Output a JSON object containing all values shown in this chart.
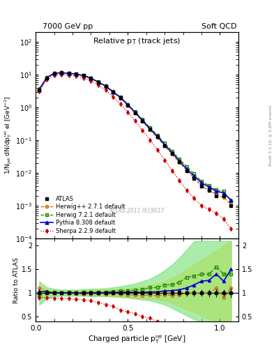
{
  "title_left": "7000 GeV pp",
  "title_right": "Soft QCD",
  "plot_title": "Relative p$_{\\rm T}$ (track jets)",
  "xlabel": "Charged particle p$^{\\rm rel}_{\\rm T}$ [GeV]",
  "ylabel_main": "1/N$_{\\rm jet}$ dN/dp$^{\\rm rel}_{\\rm T}$ el [GeV$^{-1}$]",
  "ylabel_ratio": "Ratio to ATLAS",
  "right_label": "Rivet 3.1.10, ≥ 2.6M events",
  "watermark": "ATLAS 2011 I919017",
  "xlim": [
    0.0,
    1.1
  ],
  "ylim_main": [
    0.0001,
    200
  ],
  "ylim_ratio": [
    0.4,
    2.15
  ],
  "pt_values": [
    0.02,
    0.06,
    0.1,
    0.14,
    0.18,
    0.22,
    0.26,
    0.3,
    0.34,
    0.38,
    0.42,
    0.46,
    0.5,
    0.54,
    0.58,
    0.62,
    0.66,
    0.7,
    0.74,
    0.78,
    0.82,
    0.86,
    0.9,
    0.94,
    0.98,
    1.02,
    1.06
  ],
  "atlas_y": [
    3.5,
    8.0,
    11.0,
    11.5,
    11.0,
    10.5,
    9.5,
    7.8,
    6.0,
    4.5,
    3.0,
    2.0,
    1.2,
    0.7,
    0.4,
    0.22,
    0.13,
    0.07,
    0.04,
    0.022,
    0.012,
    0.007,
    0.004,
    0.003,
    0.002,
    0.002,
    0.001
  ],
  "atlas_yerr": [
    0.3,
    0.3,
    0.3,
    0.3,
    0.25,
    0.25,
    0.2,
    0.2,
    0.15,
    0.12,
    0.08,
    0.06,
    0.04,
    0.025,
    0.015,
    0.009,
    0.006,
    0.003,
    0.002,
    0.0012,
    0.0008,
    0.0005,
    0.0003,
    0.00025,
    0.00018,
    0.00015,
    0.0001
  ],
  "herwigpp_y": [
    3.85,
    8.2,
    11.1,
    11.5,
    11.0,
    10.3,
    9.3,
    7.6,
    5.9,
    4.4,
    2.95,
    1.95,
    1.15,
    0.67,
    0.38,
    0.21,
    0.123,
    0.067,
    0.038,
    0.021,
    0.012,
    0.007,
    0.004,
    0.003,
    0.0022,
    0.0018,
    0.0011
  ],
  "herwig721_y": [
    3.3,
    8.1,
    11.2,
    11.6,
    11.15,
    10.6,
    9.6,
    7.9,
    6.1,
    4.6,
    3.1,
    2.1,
    1.26,
    0.74,
    0.43,
    0.245,
    0.145,
    0.082,
    0.047,
    0.027,
    0.016,
    0.0095,
    0.0056,
    0.0042,
    0.0031,
    0.0028,
    0.0014
  ],
  "pythia_y": [
    3.6,
    8.2,
    11.0,
    11.55,
    11.05,
    10.5,
    9.5,
    7.82,
    6.02,
    4.52,
    3.03,
    2.02,
    1.22,
    0.71,
    0.405,
    0.225,
    0.133,
    0.073,
    0.042,
    0.0235,
    0.0133,
    0.0082,
    0.005,
    0.0038,
    0.0028,
    0.0025,
    0.0015
  ],
  "sherpa_y": [
    3.15,
    7.2,
    9.8,
    10.2,
    9.7,
    9.1,
    8.1,
    6.5,
    4.8,
    3.4,
    2.15,
    1.28,
    0.72,
    0.39,
    0.2,
    0.103,
    0.052,
    0.025,
    0.012,
    0.006,
    0.003,
    0.0017,
    0.001,
    0.0008,
    0.0006,
    0.0004,
    0.0002
  ],
  "herwigpp_band_lo": [
    0.88,
    0.93,
    0.95,
    0.96,
    0.96,
    0.96,
    0.95,
    0.95,
    0.95,
    0.94,
    0.93,
    0.92,
    0.91,
    0.9,
    0.89,
    0.88,
    0.86,
    0.83,
    0.78,
    0.73,
    0.65,
    0.6,
    0.52,
    0.45,
    0.4,
    0.35,
    0.3
  ],
  "herwigpp_band_hi": [
    1.15,
    1.08,
    1.06,
    1.05,
    1.05,
    1.05,
    1.06,
    1.06,
    1.06,
    1.07,
    1.08,
    1.09,
    1.1,
    1.12,
    1.14,
    1.16,
    1.2,
    1.25,
    1.32,
    1.4,
    1.5,
    1.6,
    1.7,
    1.8,
    1.9,
    2.0,
    2.1
  ],
  "herwig721_band_lo": [
    0.75,
    0.88,
    0.92,
    0.94,
    0.94,
    0.94,
    0.94,
    0.93,
    0.93,
    0.93,
    0.92,
    0.91,
    0.9,
    0.88,
    0.86,
    0.84,
    0.8,
    0.75,
    0.68,
    0.6,
    0.52,
    0.44,
    0.38,
    0.32,
    0.28,
    0.24,
    0.2
  ],
  "herwig721_band_hi": [
    1.25,
    1.12,
    1.09,
    1.07,
    1.07,
    1.07,
    1.08,
    1.09,
    1.09,
    1.1,
    1.12,
    1.14,
    1.17,
    1.2,
    1.25,
    1.3,
    1.38,
    1.48,
    1.6,
    1.75,
    1.92,
    2.1,
    2.1,
    2.1,
    2.1,
    2.1,
    2.1
  ],
  "color_atlas": "#000000",
  "color_herwigpp": "#cc6600",
  "color_herwig721": "#228800",
  "color_pythia": "#0000cc",
  "color_sherpa": "#cc0000",
  "color_herwigpp_band": "#ffdd44",
  "color_herwig721_band": "#66dd66",
  "background_color": "#ffffff"
}
